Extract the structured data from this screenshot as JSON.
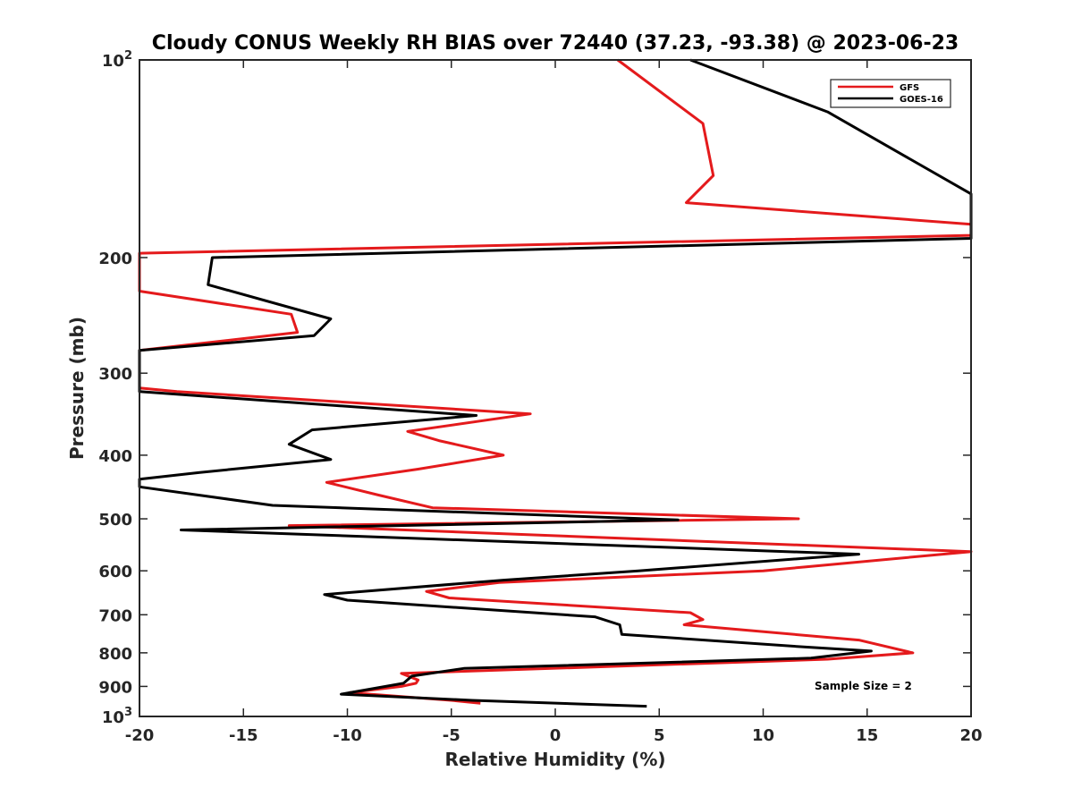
{
  "chart_data": {
    "type": "line",
    "title": "Cloudy CONUS Weekly RH BIAS over 72440 (37.23, -93.38) @ 2023-06-23",
    "xlabel": "Relative Humidity (%)",
    "ylabel": "Pressure (mb)",
    "xlim": [
      -20,
      20
    ],
    "ylim": [
      100,
      1000
    ],
    "y_scale": "log",
    "y_reversed": true,
    "grid": false,
    "legend_position": "top-right",
    "x_ticks": [
      "-20",
      "-15",
      "-10",
      "-5",
      "0",
      "5",
      "10",
      "15",
      "20"
    ],
    "y_ticks": [
      {
        "value": 100,
        "base": "10",
        "exp": "2"
      },
      {
        "value": 200,
        "label": "200"
      },
      {
        "value": 300,
        "label": "300"
      },
      {
        "value": 400,
        "label": "400"
      },
      {
        "value": 500,
        "label": "500"
      },
      {
        "value": 600,
        "label": "600"
      },
      {
        "value": 700,
        "label": "700"
      },
      {
        "value": 800,
        "label": "800"
      },
      {
        "value": 900,
        "label": "900"
      },
      {
        "value": 1000,
        "base": "10",
        "exp": "3"
      }
    ],
    "series": [
      {
        "name": "GFS",
        "color": "#e41a1c",
        "points": [
          [
            3.0,
            100
          ],
          [
            7.1,
            125
          ],
          [
            7.6,
            150
          ],
          [
            6.3,
            165
          ],
          [
            20.0,
            178
          ],
          [
            20.0,
            185
          ],
          [
            -20.0,
            197
          ],
          [
            -20.0,
            225
          ],
          [
            -12.7,
            244
          ],
          [
            -12.4,
            260
          ],
          [
            -20.0,
            277
          ],
          [
            -20.0,
            316
          ],
          [
            -18.2,
            320
          ],
          [
            -1.2,
            346
          ],
          [
            -7.1,
            368
          ],
          [
            -5.6,
            380
          ],
          [
            -2.5,
            400
          ],
          [
            -6.6,
            420
          ],
          [
            -11.0,
            440
          ],
          [
            -8.5,
            460
          ],
          [
            -5.9,
            481
          ],
          [
            11.7,
            500
          ],
          [
            -12.8,
            512
          ],
          [
            20.0,
            561
          ],
          [
            10.0,
            600
          ],
          [
            -2.7,
            625
          ],
          [
            -6.2,
            645
          ],
          [
            -5.1,
            660
          ],
          [
            6.5,
            695
          ],
          [
            7.1,
            712
          ],
          [
            6.2,
            725
          ],
          [
            14.6,
            765
          ],
          [
            17.2,
            800
          ],
          [
            13.1,
            818
          ],
          [
            -7.4,
            860
          ],
          [
            -6.6,
            880
          ],
          [
            -6.7,
            890
          ],
          [
            -7.4,
            900
          ],
          [
            -9.9,
            920
          ],
          [
            -5.0,
            945
          ],
          [
            -3.6,
            955
          ]
        ]
      },
      {
        "name": "GOES-16",
        "color": "#000000",
        "points": [
          [
            6.5,
            100
          ],
          [
            13.1,
            120
          ],
          [
            16.8,
            140
          ],
          [
            20.0,
            160
          ],
          [
            20.0,
            187
          ],
          [
            -16.5,
            200
          ],
          [
            -16.7,
            220
          ],
          [
            -10.8,
            248
          ],
          [
            -11.6,
            263
          ],
          [
            -20.0,
            277
          ],
          [
            -20.0,
            320
          ],
          [
            -3.8,
            348
          ],
          [
            -11.7,
            366
          ],
          [
            -12.8,
            385
          ],
          [
            -10.8,
            406
          ],
          [
            -17.1,
            425
          ],
          [
            -20.0,
            435
          ],
          [
            -20.0,
            447
          ],
          [
            -13.6,
            477
          ],
          [
            5.9,
            502
          ],
          [
            -18.0,
            520
          ],
          [
            14.6,
            566
          ],
          [
            4.0,
            600
          ],
          [
            -2.5,
            620
          ],
          [
            -11.1,
            652
          ],
          [
            -10.0,
            665
          ],
          [
            1.9,
            705
          ],
          [
            3.1,
            725
          ],
          [
            3.2,
            750
          ],
          [
            12.3,
            785
          ],
          [
            15.2,
            795
          ],
          [
            12.3,
            815
          ],
          [
            -4.4,
            845
          ],
          [
            -6.9,
            868
          ],
          [
            -7.3,
            890
          ],
          [
            -10.3,
            925
          ],
          [
            -4.0,
            945
          ],
          [
            4.4,
            965
          ]
        ]
      }
    ],
    "annotations": [
      "Sample Size = 2"
    ]
  }
}
